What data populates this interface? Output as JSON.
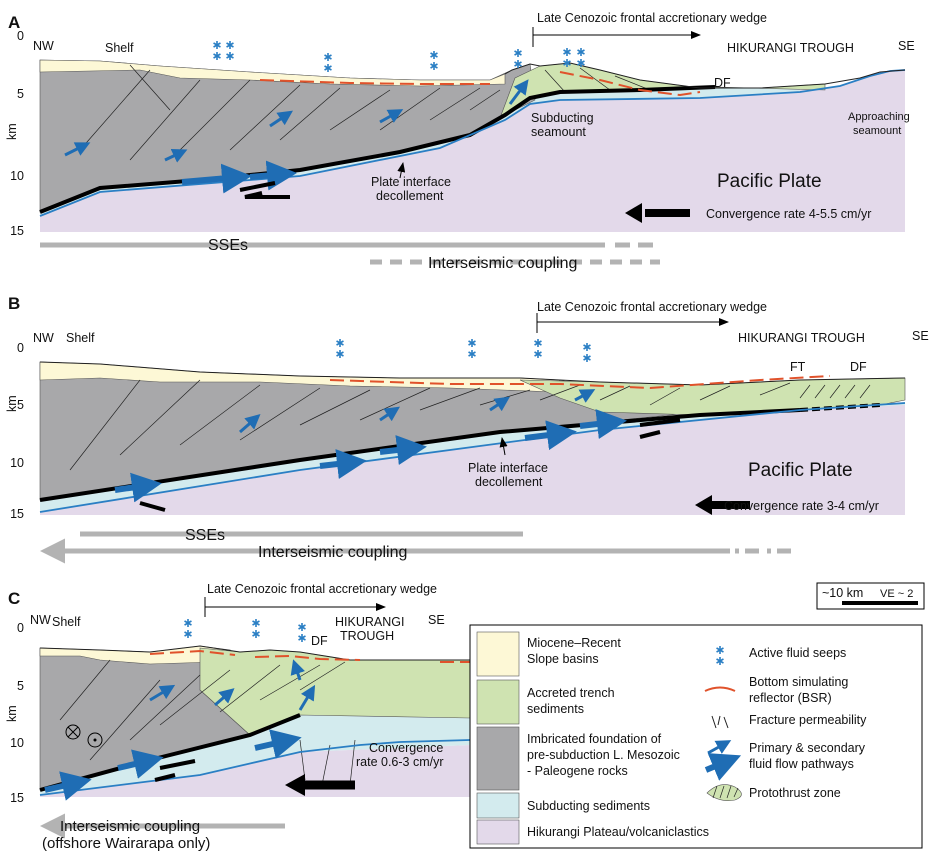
{
  "panels": [
    {
      "label": "A",
      "nw": "NW",
      "shelf": "Shelf",
      "se": "SE",
      "trough": "HIKURANGI TROUGH",
      "wedge": "Late Cenozoic frontal accretionary wedge",
      "depth_ticks": [
        0,
        5,
        10,
        15
      ],
      "depth_unit": "km",
      "annotations": [
        "DF"
      ],
      "seamount": [
        "Subducting",
        "seamount"
      ],
      "approaching": [
        "Approaching",
        "seamount"
      ],
      "decollement": [
        "Plate interface",
        "decollement"
      ],
      "plate": "Pacific Plate",
      "convergence": "Convergence rate 4-5.5 cm/yr",
      "sses": "SSEs",
      "coupling": "Interseismic coupling"
    },
    {
      "label": "B",
      "nw": "NW",
      "shelf": "Shelf",
      "se": "SE",
      "trough": "HIKURANGI TROUGH",
      "wedge": "Late Cenozoic frontal accretionary wedge",
      "depth_ticks": [
        0,
        5,
        10,
        15
      ],
      "depth_unit": "km",
      "annotations": [
        "FT",
        "DF"
      ],
      "decollement": [
        "Plate interface",
        "decollement"
      ],
      "plate": "Pacific Plate",
      "convergence": "Convergence rate 3-4 cm/yr",
      "sses": "SSEs",
      "coupling": "Interseismic coupling"
    },
    {
      "label": "C",
      "nw": "NW",
      "shelf": "Shelf",
      "se": "SE",
      "trough": [
        "HIKURANGI",
        "TROUGH"
      ],
      "wedge": "Late Cenozoic frontal accretionary wedge",
      "depth_ticks": [
        0,
        5,
        10,
        15
      ],
      "depth_unit": "km",
      "annotations": [
        "DF"
      ],
      "convergence": [
        "Convergence",
        "rate 0.6-3 cm/yr"
      ],
      "coupling": [
        "Interseismic coupling",
        "(offshore Wairarapa only)"
      ]
    }
  ],
  "scale_bar": {
    "length": "~10 km",
    "ve": "VE ~ 2"
  },
  "legend": {
    "units": [
      [
        "Miocene–Recent",
        "Slope basins"
      ],
      [
        "Accreted trench",
        "sediments"
      ],
      [
        "Imbricated foundation of",
        "pre-subduction L. Mesozoic",
        "- Paleogene rocks"
      ],
      [
        "Subducting sediments"
      ],
      [
        "Hikurangi Plateau/volcaniclastics"
      ]
    ],
    "symbols": [
      [
        "Active fluid seeps"
      ],
      [
        "Bottom simulating",
        "reflector (BSR)"
      ],
      [
        "Fracture permeability"
      ],
      [
        "Primary & secondary",
        "fluid flow pathways"
      ],
      [
        "Protothrust zone"
      ]
    ]
  }
}
